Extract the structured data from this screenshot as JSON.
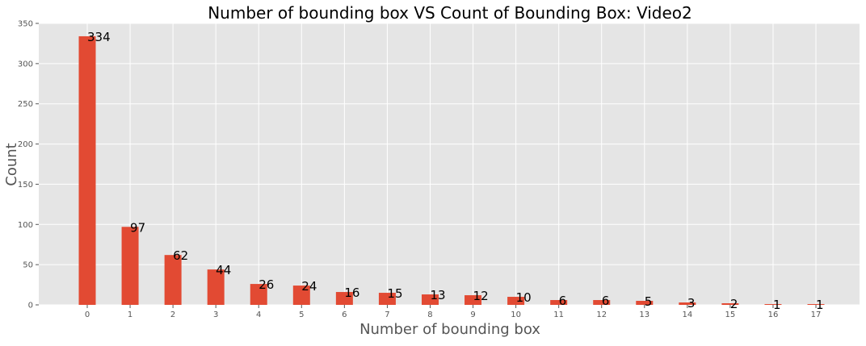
{
  "chart_data": {
    "type": "bar",
    "title": "Number of bounding box VS Count of Bounding Box: Video2",
    "xlabel": "Number of bounding box",
    "ylabel": "Count",
    "categories": [
      "0",
      "1",
      "2",
      "3",
      "4",
      "5",
      "6",
      "7",
      "8",
      "9",
      "10",
      "11",
      "12",
      "13",
      "14",
      "15",
      "16",
      "17"
    ],
    "values": [
      334,
      97,
      62,
      44,
      26,
      24,
      16,
      15,
      13,
      12,
      10,
      6,
      6,
      5,
      3,
      2,
      1,
      1
    ],
    "data_labels": [
      "334",
      "97",
      "62",
      "44",
      "26",
      "24",
      "16",
      "15",
      "13",
      "12",
      "10",
      "6",
      "6",
      "5",
      "3",
      "2",
      "1",
      "1"
    ],
    "ylim": [
      0,
      350
    ],
    "yticks": [
      "0",
      "50",
      "100",
      "150",
      "200",
      "250",
      "300",
      "350"
    ],
    "grid": true,
    "colors": {
      "bar": "#E24A33",
      "plot_background": "#E5E5E5",
      "grid": "#FFFFFF"
    }
  }
}
